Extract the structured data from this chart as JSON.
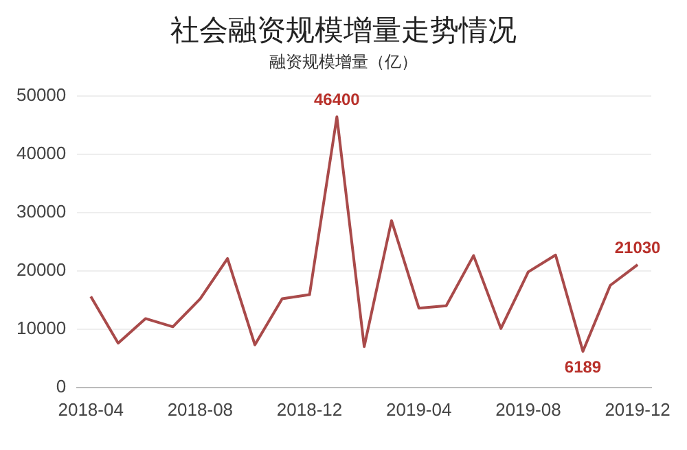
{
  "chart_data": {
    "type": "line",
    "title": "社会融资规模增量走势情况",
    "subtitle": "融资规模增量（亿）",
    "categories": [
      "2018-04",
      null,
      null,
      null,
      "2018-08",
      null,
      null,
      null,
      "2018-12",
      null,
      null,
      null,
      "2019-04",
      null,
      null,
      null,
      "2019-08",
      null,
      null,
      null,
      "2019-12"
    ],
    "series": [
      {
        "color": "#a94a4a",
        "values": [
          15600,
          7600,
          11800,
          10400,
          15200,
          22100,
          7300,
          15200,
          15900,
          46400,
          7000,
          28600,
          13600,
          14000,
          22600,
          10100,
          19800,
          22700,
          6189,
          17500,
          21030
        ],
        "value_labels": [
          null,
          null,
          null,
          null,
          null,
          null,
          null,
          null,
          null,
          "46400",
          null,
          null,
          null,
          null,
          null,
          null,
          null,
          null,
          "6189",
          null,
          "21030"
        ]
      }
    ],
    "ylim": [
      0,
      50000
    ],
    "yticks": [
      0,
      10000,
      20000,
      30000,
      40000,
      50000
    ],
    "grid": "y",
    "legend": false,
    "marker": "none",
    "line_style": "solid"
  }
}
